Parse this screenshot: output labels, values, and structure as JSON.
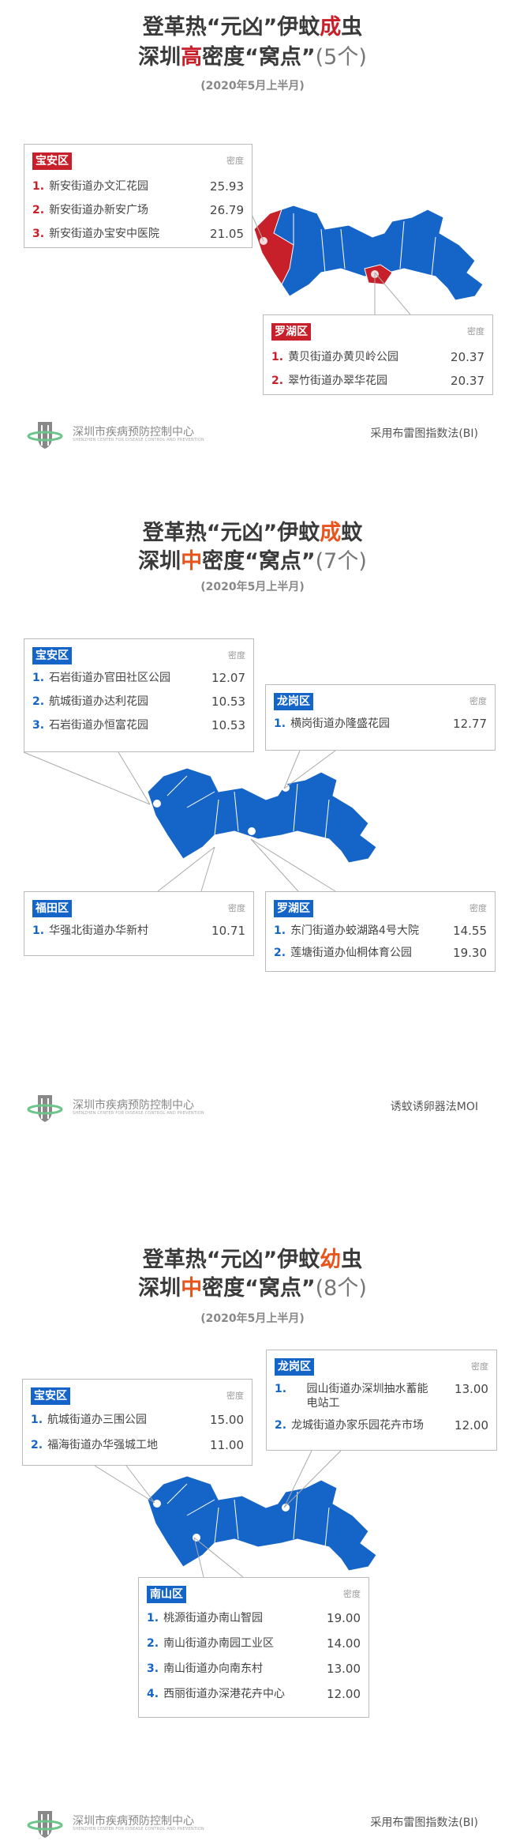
{
  "colors": {
    "high": "#c8202a",
    "medium": "#e8541c",
    "map_blue": "#1565c8",
    "map_red": "#c8202a"
  },
  "density_label": "密度",
  "org": {
    "name": "深圳市疾病预防控制中心",
    "name_en": "SHENZHEN CENTER FOR DISEASE CONTROL AND PREVENTION"
  },
  "sections": [
    {
      "title1_a": "登革热“元凶”伊蚊",
      "title1_hl": "成",
      "title1_b": "虫",
      "title2_a": "深圳",
      "title2_hl": "高",
      "title2_b": "密度“窝点”",
      "count": "(5个)",
      "date": "(2020年5月上半月)",
      "method": "采用布雷图指数法(BI)",
      "districts": [
        {
          "name": "宝安区",
          "items": [
            {
              "num": "1.",
              "name": "新安街道办文汇花园",
              "value": "25.93"
            },
            {
              "num": "2.",
              "name": "新安街道办新安广场",
              "value": "26.79"
            },
            {
              "num": "3.",
              "name": "新安街道办宝安中医院",
              "value": "21.05"
            }
          ]
        },
        {
          "name": "罗湖区",
          "items": [
            {
              "num": "1.",
              "name": "黄贝街道办黄贝岭公园",
              "value": "20.37"
            },
            {
              "num": "2.",
              "name": "翠竹街道办翠华花园",
              "value": "20.37"
            }
          ]
        }
      ]
    },
    {
      "title1_a": "登革热“元凶”伊蚊",
      "title1_hl": "成",
      "title1_b": "蚊",
      "title2_a": "深圳",
      "title2_hl": "中",
      "title2_b": "密度“窝点”",
      "count": "(7个)",
      "date": "(2020年5月上半月)",
      "method": "诱蚊诱卵器法MOI",
      "districts": [
        {
          "name": "宝安区",
          "items": [
            {
              "num": "1.",
              "name": "石岩街道办官田社区公园",
              "value": "12.07"
            },
            {
              "num": "2.",
              "name": "航城街道办达利花园",
              "value": "10.53"
            },
            {
              "num": "3.",
              "name": "石岩街道办恒富花园",
              "value": "10.53"
            }
          ]
        },
        {
          "name": "龙岗区",
          "items": [
            {
              "num": "1.",
              "name": "横岗街道办隆盛花园",
              "value": "12.77"
            }
          ]
        },
        {
          "name": "福田区",
          "items": [
            {
              "num": "1.",
              "name": "华强北街道办华新村",
              "value": "10.71"
            }
          ]
        },
        {
          "name": "罗湖区",
          "items": [
            {
              "num": "1.",
              "name": "东门街道办蛟湖路4号大院",
              "value": "14.55"
            },
            {
              "num": "2.",
              "name": "莲塘街道办仙桐体育公园",
              "value": "19.30"
            }
          ]
        }
      ]
    },
    {
      "title1_a": "登革热“元凶”伊蚊",
      "title1_hl": "幼",
      "title1_b": "虫",
      "title2_a": "深圳",
      "title2_hl": "中",
      "title2_b": "密度“窝点”",
      "count": "(8个)",
      "date": "(2020年5月上半月)",
      "method": "采用布雷图指数法(BI)",
      "districts": [
        {
          "name": "宝安区",
          "items": [
            {
              "num": "1.",
              "name": "航城街道办三围公园",
              "value": "15.00"
            },
            {
              "num": "2.",
              "name": "福海街道办华强城工地",
              "value": "11.00"
            }
          ]
        },
        {
          "name": "龙岗区",
          "items": [
            {
              "num": "1.",
              "name": "园山街道办深圳抽水蓄能电站工",
              "value": "13.00"
            },
            {
              "num": "2.",
              "name": "龙城街道办家乐园花卉市场",
              "value": "12.00"
            }
          ]
        },
        {
          "name": "南山区",
          "items": [
            {
              "num": "1.",
              "name": "桃源街道办南山智园",
              "value": "19.00"
            },
            {
              "num": "2.",
              "name": "南山街道办南园工业区",
              "value": "14.00"
            },
            {
              "num": "3.",
              "name": "南山街道办向南东村",
              "value": "13.00"
            },
            {
              "num": "4.",
              "name": "西丽街道办深港花卉中心",
              "value": "12.00"
            }
          ]
        }
      ]
    }
  ]
}
